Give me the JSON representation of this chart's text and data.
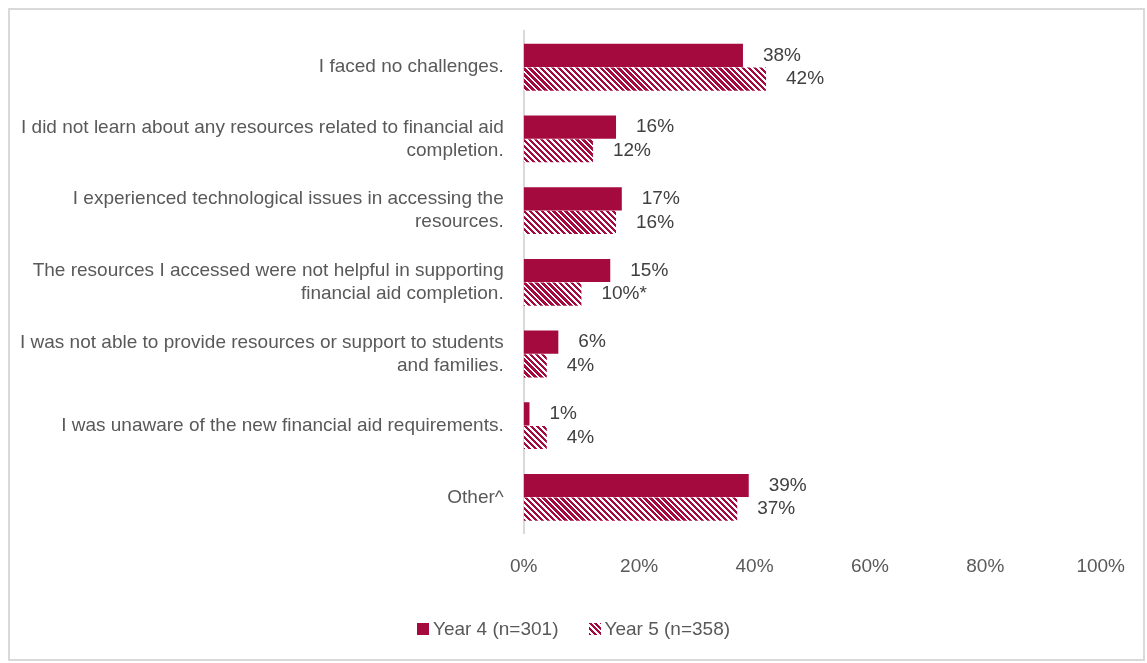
{
  "chart_data": {
    "type": "bar",
    "orientation": "horizontal",
    "categories": [
      "I faced no challenges.",
      "I did not learn about any resources related to financial aid completion.",
      "I experienced technological issues in accessing the resources.",
      "The resources I accessed were not helpful in supporting financial aid completion.",
      "I was not able to provide resources or support to students and families.",
      "I was unaware of the new financial aid requirements.",
      "Other^"
    ],
    "series": [
      {
        "name": "Year 4 (n=301)",
        "color": "#a50a3f",
        "values": [
          38,
          16,
          17,
          15,
          6,
          1,
          39
        ],
        "value_labels": [
          "38%",
          "16%",
          "17%",
          "15%",
          "6%",
          "1%",
          "39%"
        ]
      },
      {
        "name": "Year 5 (n=358)",
        "color": "#a50a3f",
        "values": [
          42,
          12,
          16,
          10,
          4,
          4,
          37
        ],
        "value_labels": [
          "42%",
          "12%",
          "16%",
          "10%*",
          "4%",
          "4%",
          "37%"
        ]
      }
    ],
    "xlim": [
      0,
      100
    ],
    "xticks": [
      {
        "value": 0,
        "label": "0%"
      },
      {
        "value": 20,
        "label": "20%"
      },
      {
        "value": 40,
        "label": "40%"
      },
      {
        "value": 60,
        "label": "60%"
      },
      {
        "value": 80,
        "label": "80%"
      },
      {
        "value": 100,
        "label": "100%"
      }
    ],
    "grid": false,
    "legend": "bottom"
  }
}
